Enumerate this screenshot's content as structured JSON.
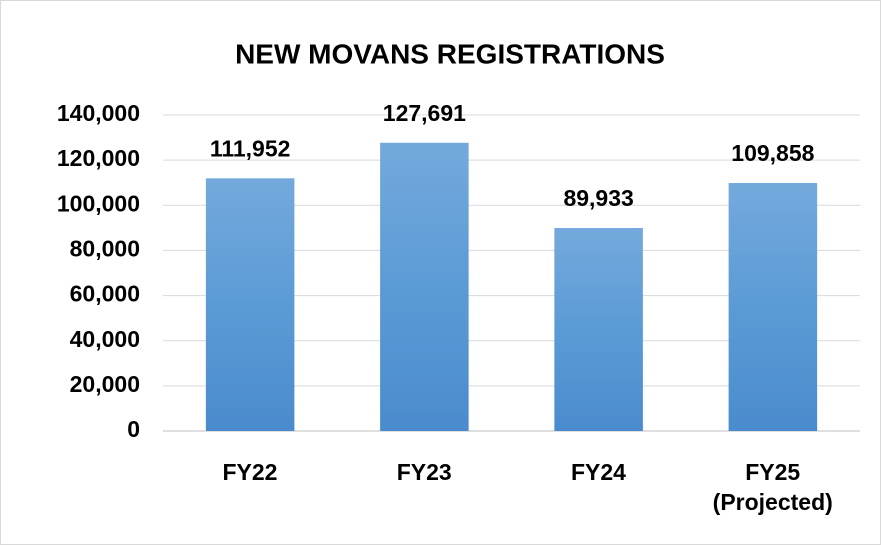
{
  "chart_data": {
    "type": "bar",
    "title": "NEW MOVANS REGISTRATIONS",
    "categories": [
      "FY22",
      "FY23",
      "FY24",
      "FY25\n(Projected)"
    ],
    "values": [
      111952,
      127691,
      89933,
      109858
    ],
    "value_labels": [
      "111,952",
      "127,691",
      "89,933",
      "109,858"
    ],
    "color": "#5b9bd5",
    "ylim": [
      0,
      140000
    ],
    "yticks": [
      0,
      {
        "value": 20000,
        "label": "20,000"
      },
      {
        "value": 40000,
        "label": "40,000"
      },
      {
        "value": 60000,
        "label": "60,000"
      },
      {
        "value": 80000,
        "label": "80,000"
      },
      {
        "value": 100000,
        "label": "100,000"
      },
      {
        "value": 120000,
        "label": "120,000"
      },
      {
        "value": 140000,
        "label": "140,000"
      }
    ],
    "grid": true
  }
}
